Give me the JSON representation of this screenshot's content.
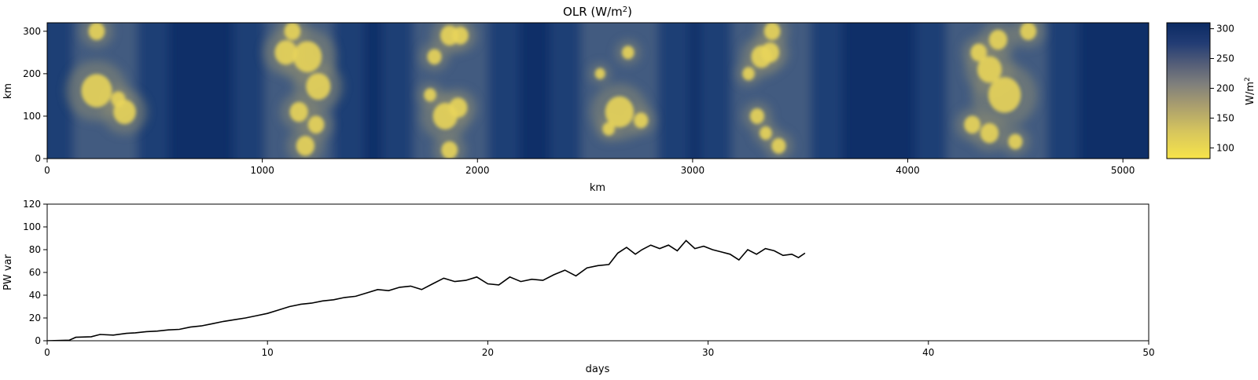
{
  "chart_data": [
    {
      "type": "heatmap",
      "title": "OLR (W/m",
      "title_sup": "2",
      "title_close": ")",
      "xlabel": "km",
      "ylabel": "km",
      "xlim": [
        0,
        5120
      ],
      "ylim": [
        0,
        320
      ],
      "xticks": [
        0,
        1000,
        2000,
        3000,
        4000,
        5000
      ],
      "yticks": [
        0,
        100,
        200,
        300
      ],
      "colorscale": "cividis (reversed)",
      "colorbar": {
        "label": "W/m",
        "label_sup": "2",
        "range": [
          82,
          310
        ],
        "ticks": [
          100,
          150,
          200,
          250,
          300
        ],
        "high_color": "#0b2a63",
        "low_color": "#f7e44a"
      },
      "convective_bands_km": [
        {
          "x_start": 120,
          "x_end": 420,
          "clusters": [
            [
              230,
              160,
              75
            ],
            [
              360,
              110,
              55
            ],
            [
              230,
              300,
              40
            ],
            [
              330,
              140,
              35
            ]
          ]
        },
        {
          "x_start": 1010,
          "x_end": 1330,
          "clusters": [
            [
              1110,
              250,
              55
            ],
            [
              1210,
              240,
              70
            ],
            [
              1260,
              170,
              60
            ],
            [
              1170,
              110,
              45
            ],
            [
              1250,
              80,
              40
            ],
            [
              1140,
              300,
              40
            ],
            [
              1200,
              30,
              45
            ]
          ]
        },
        {
          "x_start": 1700,
          "x_end": 2050,
          "clusters": [
            [
              1850,
              100,
              60
            ],
            [
              1910,
              120,
              45
            ],
            [
              1870,
              290,
              45
            ],
            [
              1920,
              290,
              40
            ],
            [
              1800,
              240,
              35
            ],
            [
              1870,
              20,
              40
            ],
            [
              1780,
              150,
              30
            ]
          ]
        },
        {
          "x_start": 2480,
          "x_end": 2840,
          "clusters": [
            [
              2660,
              110,
              70
            ],
            [
              2760,
              90,
              35
            ],
            [
              2700,
              250,
              30
            ],
            [
              2610,
              70,
              30
            ],
            [
              2570,
              200,
              25
            ]
          ]
        },
        {
          "x_start": 3180,
          "x_end": 3550,
          "clusters": [
            [
              3320,
              240,
              50
            ],
            [
              3360,
              250,
              45
            ],
            [
              3370,
              300,
              40
            ],
            [
              3300,
              100,
              35
            ],
            [
              3340,
              60,
              30
            ],
            [
              3400,
              30,
              35
            ],
            [
              3260,
              200,
              30
            ]
          ]
        },
        {
          "x_start": 4180,
          "x_end": 4650,
          "clusters": [
            [
              4450,
              150,
              80
            ],
            [
              4380,
              210,
              60
            ],
            [
              4420,
              280,
              45
            ],
            [
              4560,
              300,
              40
            ],
            [
              4300,
              80,
              40
            ],
            [
              4330,
              250,
              40
            ],
            [
              4380,
              60,
              45
            ],
            [
              4500,
              40,
              35
            ]
          ]
        }
      ]
    },
    {
      "type": "line",
      "xlabel": "days",
      "ylabel": "PW var",
      "xlim": [
        0,
        50
      ],
      "ylim": [
        0,
        120
      ],
      "xticks": [
        0,
        10,
        20,
        30,
        40,
        50
      ],
      "yticks": [
        0,
        20,
        40,
        60,
        80,
        100,
        120
      ],
      "line_color": "#000000",
      "x": [
        0,
        1,
        1.3,
        2,
        2.4,
        3,
        3.6,
        4,
        4.5,
        5,
        5.5,
        6,
        6.5,
        7,
        7.5,
        8,
        8.5,
        9,
        9.5,
        10,
        10.5,
        11,
        11.5,
        12,
        12.5,
        13,
        13.5,
        14,
        14.5,
        15,
        15.5,
        16,
        16.5,
        17,
        17.5,
        18,
        18.5,
        19,
        19.5,
        20,
        20.5,
        21,
        21.5,
        22,
        22.5,
        23,
        23.5,
        24,
        24.5,
        25,
        25.5,
        25.9,
        26.3,
        26.7,
        27,
        27.4,
        27.8,
        28.2,
        28.6,
        29,
        29.4,
        29.8,
        30.2,
        30.6,
        31,
        31.4,
        31.8,
        32.2,
        32.6,
        33,
        33.4,
        33.8,
        34.1,
        34.4
      ],
      "y": [
        0,
        0.5,
        3,
        3.5,
        5.5,
        5,
        6.5,
        7,
        8,
        8.5,
        9.5,
        10,
        12,
        13,
        15,
        17,
        18.5,
        20,
        22,
        24,
        27,
        30,
        32,
        33,
        35,
        36,
        38,
        39,
        42,
        45,
        44,
        47,
        48,
        45,
        50,
        55,
        52,
        53,
        56,
        50,
        49,
        56,
        52,
        54,
        53,
        58,
        62,
        57,
        64,
        66,
        67,
        77,
        82,
        76,
        80,
        84,
        81,
        84,
        79,
        88,
        81,
        83,
        80,
        78,
        76,
        71,
        80,
        76,
        81,
        79,
        75,
        76,
        73,
        77
      ]
    }
  ]
}
